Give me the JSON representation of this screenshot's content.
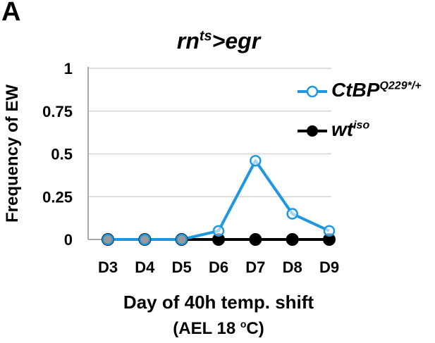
{
  "panel_label": "A",
  "chart_data": {
    "type": "line",
    "title": {
      "main": "rn",
      "sup": "ts",
      "rest": ">egr"
    },
    "categories": [
      "D3",
      "D4",
      "D5",
      "D6",
      "D7",
      "D8",
      "D9"
    ],
    "ylim": [
      0,
      1
    ],
    "yticks": [
      0,
      0.25,
      0.5,
      0.75,
      1
    ],
    "ytick_labels": [
      "0",
      "0.25",
      "0.5",
      "0.75",
      "1"
    ],
    "ylabel": "Frequency of EW",
    "xlabel": "Day of 40h temp. shift",
    "xlabel2": {
      "pre": "(AEL  18 ",
      "sup": "o",
      "post": "C)"
    },
    "grid": "horizontal",
    "legend_position": "right",
    "series": [
      {
        "name": "CtBP",
        "name_sup": "Q229*/+",
        "color": "#1f96e0",
        "marker": "open-circle",
        "values": [
          0,
          0,
          0,
          0.05,
          0.46,
          0.15,
          0.05
        ]
      },
      {
        "name": "wt",
        "name_sup": "iso",
        "color": "#000000",
        "marker": "filled-circle",
        "values": [
          0,
          0,
          0,
          0,
          0,
          0,
          0
        ]
      }
    ]
  }
}
